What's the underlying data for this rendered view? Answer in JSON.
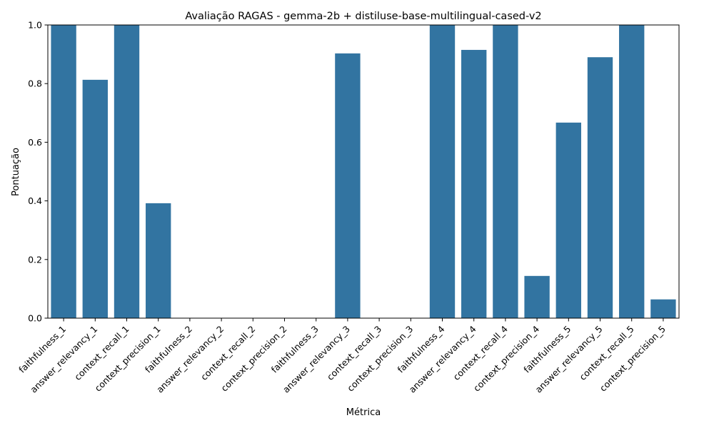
{
  "chart_data": {
    "type": "bar",
    "title": "Avaliação RAGAS - gemma-2b + distiluse-base-multilingual-cased-v2",
    "xlabel": "Métrica",
    "ylabel": "Pontuação",
    "ylim": [
      0,
      1
    ],
    "yticks": [
      "0.0",
      "0.2",
      "0.4",
      "0.6",
      "0.8",
      "1.0"
    ],
    "grid": false,
    "bar_color": "#3274a1",
    "categories": [
      "faithfulness_1",
      "answer_relevancy_1",
      "context_recall_1",
      "context_precision_1",
      "faithfulness_2",
      "answer_relevancy_2",
      "context_recall_2",
      "context_precision_2",
      "faithfulness_3",
      "answer_relevancy_3",
      "context_recall_3",
      "context_precision_3",
      "faithfulness_4",
      "answer_relevancy_4",
      "context_recall_4",
      "context_precision_4",
      "faithfulness_5",
      "answer_relevancy_5",
      "context_recall_5",
      "context_precision_5"
    ],
    "values": [
      1.0,
      0.813,
      1.0,
      0.392,
      0.0,
      0.0,
      0.0,
      0.0,
      0.0,
      0.903,
      0.0,
      0.0,
      1.0,
      0.915,
      1.0,
      0.144,
      0.667,
      0.89,
      1.0,
      0.064
    ]
  }
}
